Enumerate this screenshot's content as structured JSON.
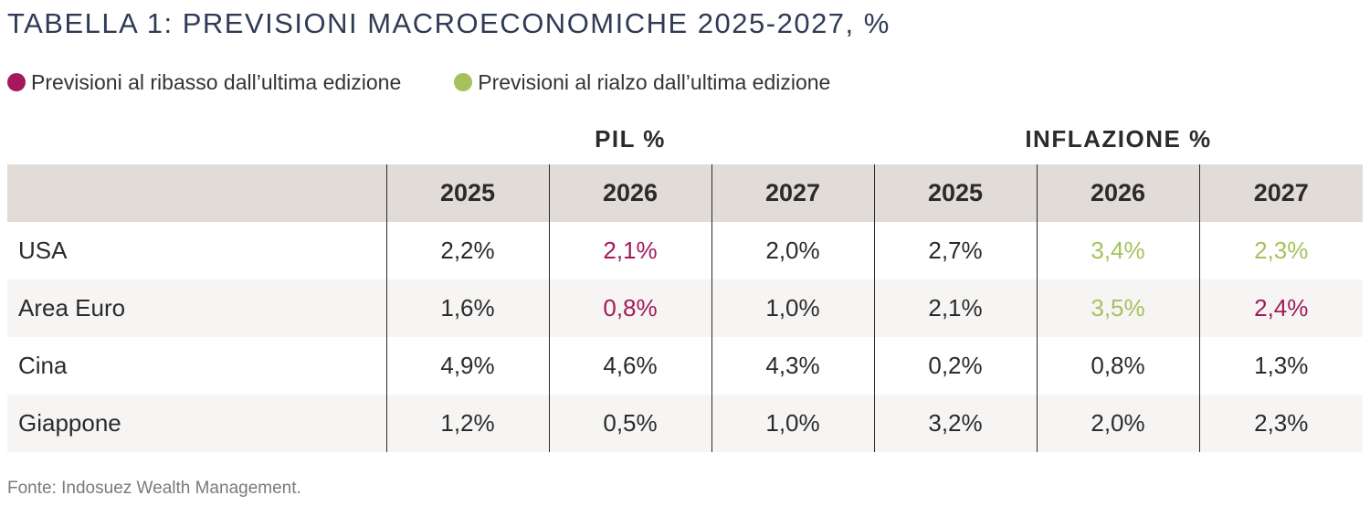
{
  "title": "TABELLA 1: PREVISIONI MACROECONOMICHE 2025-2027, %",
  "legend": {
    "down_label": "Previsioni al ribasso dall’ultima edizione",
    "up_label": "Previsioni al rialzo dall’ultima edizione",
    "down_color": "#a3195b",
    "up_color": "#a6c15b"
  },
  "groups": {
    "pil": "PIL %",
    "inflazione": "INFLAZIONE %"
  },
  "years": [
    "2025",
    "2026",
    "2027",
    "2025",
    "2026",
    "2027"
  ],
  "rows": [
    {
      "country": "USA",
      "cells": [
        {
          "value": "2,2%",
          "trend": "none"
        },
        {
          "value": "2,1%",
          "trend": "down"
        },
        {
          "value": "2,0%",
          "trend": "none"
        },
        {
          "value": "2,7%",
          "trend": "none"
        },
        {
          "value": "3,4%",
          "trend": "up"
        },
        {
          "value": "2,3%",
          "trend": "up"
        }
      ]
    },
    {
      "country": "Area Euro",
      "cells": [
        {
          "value": "1,6%",
          "trend": "none"
        },
        {
          "value": "0,8%",
          "trend": "down"
        },
        {
          "value": "1,0%",
          "trend": "none"
        },
        {
          "value": "2,1%",
          "trend": "none"
        },
        {
          "value": "3,5%",
          "trend": "up"
        },
        {
          "value": "2,4%",
          "trend": "down"
        }
      ]
    },
    {
      "country": "Cina",
      "cells": [
        {
          "value": "4,9%",
          "trend": "none"
        },
        {
          "value": "4,6%",
          "trend": "none"
        },
        {
          "value": "4,3%",
          "trend": "none"
        },
        {
          "value": "0,2%",
          "trend": "none"
        },
        {
          "value": "0,8%",
          "trend": "none"
        },
        {
          "value": "1,3%",
          "trend": "none"
        }
      ]
    },
    {
      "country": "Giappone",
      "cells": [
        {
          "value": "1,2%",
          "trend": "none"
        },
        {
          "value": "0,5%",
          "trend": "none"
        },
        {
          "value": "1,0%",
          "trend": "none"
        },
        {
          "value": "3,2%",
          "trend": "none"
        },
        {
          "value": "2,0%",
          "trend": "none"
        },
        {
          "value": "2,3%",
          "trend": "none"
        }
      ]
    }
  ],
  "source": "Fonte: Indosuez Wealth Management."
}
